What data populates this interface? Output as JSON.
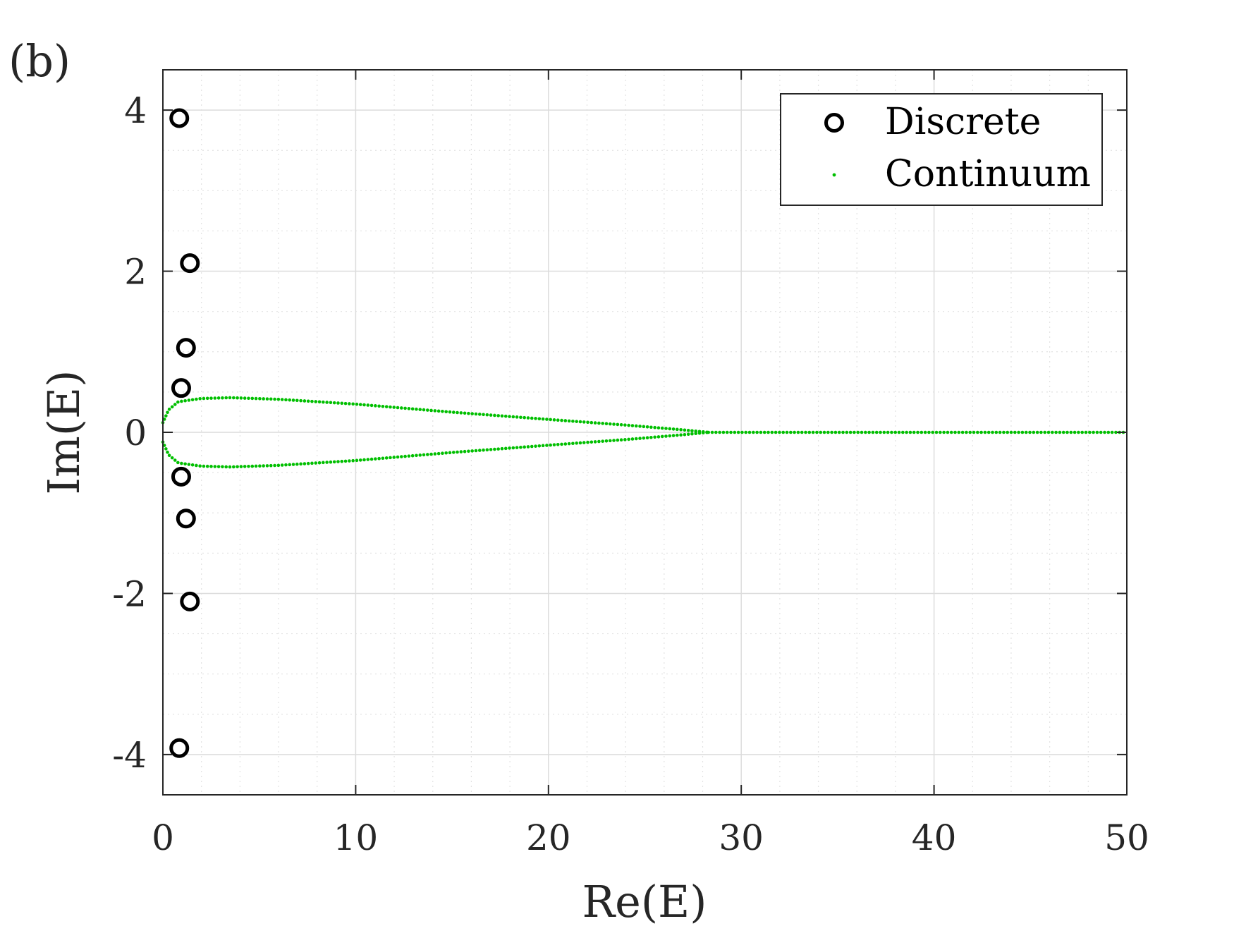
{
  "panel_label": "(b)",
  "chart_data": {
    "type": "scatter",
    "title": "",
    "xlabel": "Re(E)",
    "ylabel": "Im(E)",
    "xlim": [
      0,
      50
    ],
    "ylim": [
      -4.5,
      4.5
    ],
    "xticks": [
      0,
      10,
      20,
      30,
      40,
      50
    ],
    "xtick_labels": [
      "0",
      "10",
      "20",
      "30",
      "40",
      "50"
    ],
    "yticks": [
      -4,
      -2,
      0,
      2,
      4
    ],
    "ytick_labels": [
      "-4",
      "-2",
      "0",
      "2",
      "4"
    ],
    "grid": true,
    "minor_grid": true,
    "legend": "top-right",
    "series": [
      {
        "name": "Discrete",
        "marker": "open-circle",
        "color": "#000000",
        "points": [
          [
            0.85,
            3.9
          ],
          [
            1.4,
            2.1
          ],
          [
            1.2,
            1.05
          ],
          [
            0.95,
            0.55
          ],
          [
            0.95,
            -0.55
          ],
          [
            1.2,
            -1.07
          ],
          [
            1.4,
            -2.1
          ],
          [
            0.85,
            -3.92
          ]
        ]
      },
      {
        "name": "Continuum",
        "marker": "dot",
        "color": "#00bf00",
        "branches": [
          {
            "part": "upper-lobe",
            "points": [
              [
                0,
                0.12
              ],
              [
                0.3,
                0.28
              ],
              [
                0.8,
                0.38
              ],
              [
                2,
                0.42
              ],
              [
                3.5,
                0.43
              ],
              [
                6,
                0.41
              ],
              [
                10,
                0.35
              ],
              [
                15,
                0.25
              ],
              [
                20,
                0.16
              ],
              [
                24,
                0.09
              ],
              [
                27,
                0.03
              ],
              [
                28.3,
                0.0
              ]
            ]
          },
          {
            "part": "lower-lobe",
            "points": [
              [
                0,
                -0.12
              ],
              [
                0.3,
                -0.28
              ],
              [
                0.8,
                -0.38
              ],
              [
                2,
                -0.42
              ],
              [
                3.5,
                -0.43
              ],
              [
                6,
                -0.41
              ],
              [
                10,
                -0.35
              ],
              [
                15,
                -0.25
              ],
              [
                20,
                -0.16
              ],
              [
                24,
                -0.09
              ],
              [
                27,
                -0.03
              ],
              [
                28.3,
                0.0
              ]
            ]
          },
          {
            "part": "real-axis",
            "points": [
              [
                28.3,
                0.0
              ],
              [
                50,
                0.0
              ]
            ]
          }
        ]
      }
    ]
  }
}
